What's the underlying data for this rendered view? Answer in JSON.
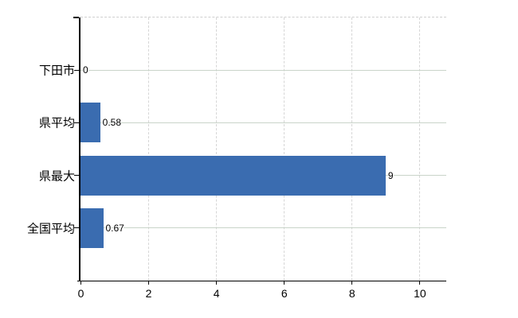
{
  "chart_data": {
    "type": "bar",
    "orientation": "horizontal",
    "title": "",
    "xlabel": "",
    "ylabel": "",
    "categories": [
      "下田市",
      "県平均",
      "県最大",
      "全国平均"
    ],
    "values": [
      0,
      0.58,
      9,
      0.67
    ],
    "data_labels": [
      "0",
      "0.58",
      "9",
      "0.67"
    ],
    "x_ticks": [
      "0",
      "2",
      "4",
      "6",
      "8",
      "10"
    ],
    "x_tick_values": [
      0,
      2,
      4,
      6,
      8,
      10
    ],
    "xlim": [
      0,
      10.79
    ],
    "grid": true,
    "legend": false,
    "colors": {
      "bar": "#3a6cb0",
      "gridline_horizontal": "#c9d4c9",
      "gridline_vertical": "#d6d6d6",
      "axis": "#000000",
      "text": "#000000",
      "background": "#ffffff"
    }
  }
}
